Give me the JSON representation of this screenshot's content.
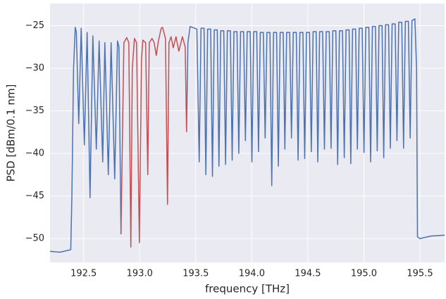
{
  "chart_data": {
    "type": "line",
    "x_label": "frequency [THz]",
    "y_label": "PSD [dBm/0.1 nm]",
    "xlim": [
      192.2,
      195.72
    ],
    "ylim": [
      -52.8,
      -22.4
    ],
    "xticks": [
      192.5,
      {
        "value": 193,
        "label": "193.0"
      },
      193.5,
      {
        "value": 194,
        "label": "194.0"
      },
      194.5,
      {
        "value": 195,
        "label": "195.0"
      },
      195.5
    ],
    "yticks": [
      {
        "value": -50,
        "label": "−50"
      },
      {
        "value": -45,
        "label": "−45"
      },
      {
        "value": -40,
        "label": "−40"
      },
      {
        "value": -35,
        "label": "−35"
      },
      {
        "value": -30,
        "label": "−30"
      },
      {
        "value": -25,
        "label": "−25"
      }
    ],
    "grid": true,
    "series": [
      {
        "color": "#4c72b0",
        "x": [
          192.2,
          192.29,
          192.385,
          192.395,
          192.41,
          192.425,
          192.435,
          192.456,
          192.478,
          192.506,
          192.531,
          192.557,
          192.582,
          192.613,
          192.638,
          192.67,
          192.689,
          192.72,
          192.745,
          192.777,
          192.802,
          192.815,
          192.833,
          193.1,
          193.418,
          193.43,
          193.45,
          193.51,
          193.531,
          193.547,
          193.574,
          193.59,
          193.606,
          193.633,
          193.649,
          193.665,
          193.692,
          193.707,
          193.723,
          193.75,
          193.766,
          193.782,
          193.809,
          193.825,
          193.841,
          193.868,
          193.884,
          193.9,
          193.927,
          193.943,
          193.959,
          193.986,
          194.001,
          194.017,
          194.044,
          194.06,
          194.076,
          194.103,
          194.119,
          194.135,
          194.162,
          194.178,
          194.194,
          194.221,
          194.237,
          194.253,
          194.28,
          194.295,
          194.311,
          194.338,
          194.354,
          194.37,
          194.397,
          194.413,
          194.429,
          194.456,
          194.472,
          194.488,
          194.515,
          194.531,
          194.547,
          194.574,
          194.589,
          194.605,
          194.632,
          194.648,
          194.664,
          194.691,
          194.707,
          194.723,
          194.75,
          194.766,
          194.782,
          194.809,
          194.825,
          194.841,
          194.868,
          194.883,
          194.899,
          194.926,
          194.942,
          194.958,
          194.985,
          195.001,
          195.017,
          195.044,
          195.06,
          195.076,
          195.103,
          195.119,
          195.135,
          195.162,
          195.177,
          195.193,
          195.22,
          195.236,
          195.252,
          195.279,
          195.295,
          195.311,
          195.338,
          195.354,
          195.37,
          195.397,
          195.413,
          195.429,
          195.455,
          195.47,
          195.478,
          195.5,
          195.6,
          195.72
        ],
        "values": [
          -51.5,
          -51.6,
          -51.3,
          -45,
          -30,
          -25.2,
          -25.8,
          -36.5,
          -25.3,
          -39,
          -25.8,
          -45.2,
          -26.2,
          -39.5,
          -26.8,
          -41,
          -27,
          -42.5,
          -27,
          -43,
          -26.8,
          -27.5,
          -49.5,
          null,
          -37.5,
          -27,
          -25.1,
          -25.4,
          -41,
          -25.3,
          -25.3,
          -42.5,
          -25.4,
          -25.4,
          -42.7,
          -25.5,
          -25.5,
          -41.5,
          -25.6,
          -25.6,
          -41.3,
          -25.6,
          -25.6,
          -40.8,
          -25.7,
          -25.7,
          -40,
          -25.7,
          -25.7,
          -38.5,
          -25.7,
          -25.7,
          -41,
          -25.7,
          -25.7,
          -39.8,
          -25.8,
          -25.8,
          -38.2,
          -25.8,
          -25.8,
          -43.8,
          -25.8,
          -25.8,
          -41.5,
          -25.8,
          -25.8,
          -39.5,
          -25.8,
          -25.8,
          -38.2,
          -25.8,
          -25.8,
          -40.8,
          -25.8,
          -25.8,
          -40.6,
          -25.8,
          -25.8,
          -39.8,
          -25.7,
          -25.7,
          -41,
          -25.7,
          -25.7,
          -39.5,
          -25.7,
          -25.7,
          -39.4,
          -25.6,
          -25.6,
          -41.3,
          -25.6,
          -25.6,
          -40.5,
          -25.5,
          -25.5,
          -41.2,
          -25.4,
          -25.4,
          -39.5,
          -25.3,
          -25.3,
          -39.9,
          -25.2,
          -25.2,
          -41,
          -25.1,
          -25.1,
          -39.7,
          -25,
          -25,
          -40.5,
          -24.9,
          -24.9,
          -39.4,
          -24.8,
          -24.8,
          -38.5,
          -24.6,
          -24.6,
          -39.4,
          -24.5,
          -24.5,
          -38.2,
          -24.4,
          -24.2,
          -30,
          -49.8,
          -50,
          -49.7,
          -49.6
        ]
      },
      {
        "color": "#c44e52",
        "x": [
          192.833,
          192.859,
          192.884,
          192.903,
          192.921,
          192.934,
          192.953,
          192.972,
          192.997,
          193.016,
          193.028,
          193.053,
          193.072,
          193.085,
          193.11,
          193.129,
          193.148,
          193.167,
          193.192,
          193.204,
          193.23,
          193.248,
          193.261,
          193.28,
          193.299,
          193.324,
          193.349,
          193.381,
          193.406,
          193.418
        ],
        "values": [
          -49.5,
          -27,
          -26.4,
          -27,
          -51,
          -30,
          -26.5,
          -27,
          -50.5,
          -29,
          -26.7,
          -27,
          -42.5,
          -27,
          -26.5,
          -27,
          -28.5,
          -26.8,
          -25.3,
          -25.2,
          -26.5,
          -46,
          -27,
          -26.3,
          -27.6,
          -26.3,
          -28,
          -26.3,
          -27.5,
          -37.5
        ]
      }
    ]
  }
}
